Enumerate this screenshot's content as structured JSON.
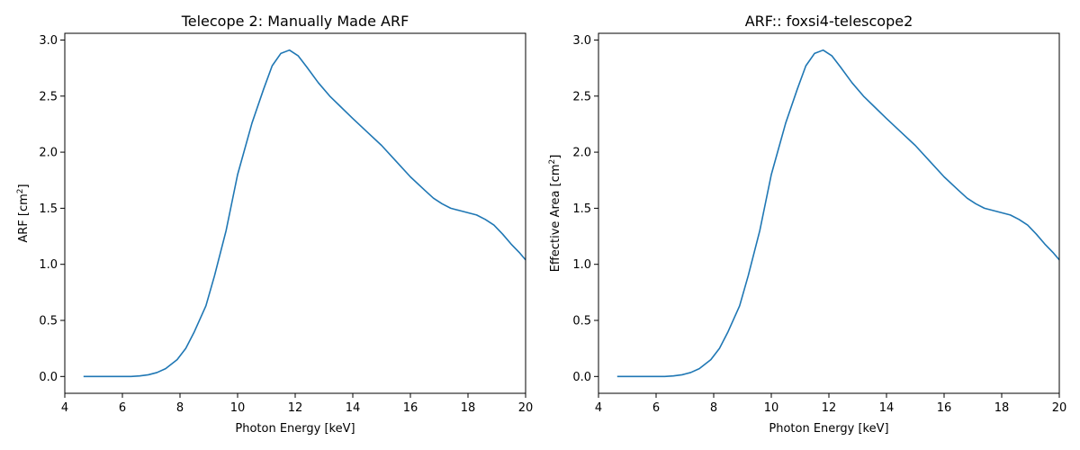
{
  "chart_data": [
    {
      "type": "line",
      "title": "Telecope 2: Manually Made ARF",
      "xlabel": "Photon Energy [keV]",
      "ylabel": "ARF [cm",
      "ylabel_sup": "2",
      "ylabel_suffix": "]",
      "xlim": [
        4,
        20
      ],
      "ylim": [
        -0.15,
        3.06
      ],
      "xticks": [
        4,
        6,
        8,
        10,
        12,
        14,
        16,
        18,
        20
      ],
      "xtick_labels": [
        "4",
        "6",
        "8",
        "10",
        "12",
        "14",
        "16",
        "18",
        "20"
      ],
      "yticks": [
        0,
        0.5,
        1,
        1.5,
        2,
        2.5,
        3
      ],
      "ytick_labels": [
        "0.0",
        "0.5",
        "1.0",
        "1.5",
        "2.0",
        "2.5",
        "3.0"
      ],
      "grid": false,
      "series": [
        {
          "color": "#1f77b4",
          "x": [
            4.65,
            5.0,
            5.5,
            6.0,
            6.3,
            6.6,
            6.9,
            7.2,
            7.5,
            7.9,
            8.2,
            8.5,
            8.9,
            9.2,
            9.6,
            10.0,
            10.5,
            10.9,
            11.2,
            11.5,
            11.8,
            12.1,
            12.4,
            12.8,
            13.2,
            13.6,
            14.0,
            14.5,
            15.0,
            15.5,
            16.0,
            16.5,
            16.8,
            17.1,
            17.4,
            17.7,
            18.0,
            18.3,
            18.6,
            18.9,
            19.2,
            19.5,
            19.8,
            20.0
          ],
          "y": [
            0.0,
            0.0,
            0.0,
            0.0,
            0.0,
            0.005,
            0.015,
            0.035,
            0.07,
            0.15,
            0.25,
            0.4,
            0.63,
            0.9,
            1.3,
            1.8,
            2.26,
            2.56,
            2.77,
            2.88,
            2.91,
            2.86,
            2.76,
            2.62,
            2.5,
            2.4,
            2.3,
            2.18,
            2.06,
            1.92,
            1.78,
            1.66,
            1.59,
            1.54,
            1.5,
            1.48,
            1.46,
            1.44,
            1.4,
            1.35,
            1.27,
            1.18,
            1.1,
            1.04
          ]
        }
      ]
    },
    {
      "type": "line",
      "title": "ARF:: foxsi4-telescope2",
      "xlabel": "Photon Energy [keV]",
      "ylabel": "Effective Area [cm",
      "ylabel_sup": "2",
      "ylabel_suffix": "]",
      "xlim": [
        4,
        20
      ],
      "ylim": [
        -0.15,
        3.06
      ],
      "xticks": [
        4,
        6,
        8,
        10,
        12,
        14,
        16,
        18,
        20
      ],
      "xtick_labels": [
        "4",
        "6",
        "8",
        "10",
        "12",
        "14",
        "16",
        "18",
        "20"
      ],
      "yticks": [
        0,
        0.5,
        1,
        1.5,
        2,
        2.5,
        3
      ],
      "ytick_labels": [
        "0.0",
        "0.5",
        "1.0",
        "1.5",
        "2.0",
        "2.5",
        "3.0"
      ],
      "grid": false,
      "series": [
        {
          "color": "#1f77b4",
          "x": [
            4.65,
            5.0,
            5.5,
            6.0,
            6.3,
            6.6,
            6.9,
            7.2,
            7.5,
            7.9,
            8.2,
            8.5,
            8.9,
            9.2,
            9.6,
            10.0,
            10.5,
            10.9,
            11.2,
            11.5,
            11.8,
            12.1,
            12.4,
            12.8,
            13.2,
            13.6,
            14.0,
            14.5,
            15.0,
            15.5,
            16.0,
            16.5,
            16.8,
            17.1,
            17.4,
            17.7,
            18.0,
            18.3,
            18.6,
            18.9,
            19.2,
            19.5,
            19.8,
            20.0
          ],
          "y": [
            0.0,
            0.0,
            0.0,
            0.0,
            0.0,
            0.005,
            0.015,
            0.035,
            0.07,
            0.15,
            0.25,
            0.4,
            0.63,
            0.9,
            1.3,
            1.8,
            2.26,
            2.56,
            2.77,
            2.88,
            2.91,
            2.86,
            2.76,
            2.62,
            2.5,
            2.4,
            2.3,
            2.18,
            2.06,
            1.92,
            1.78,
            1.66,
            1.59,
            1.54,
            1.5,
            1.48,
            1.46,
            1.44,
            1.4,
            1.35,
            1.27,
            1.18,
            1.1,
            1.04
          ]
        }
      ]
    }
  ]
}
